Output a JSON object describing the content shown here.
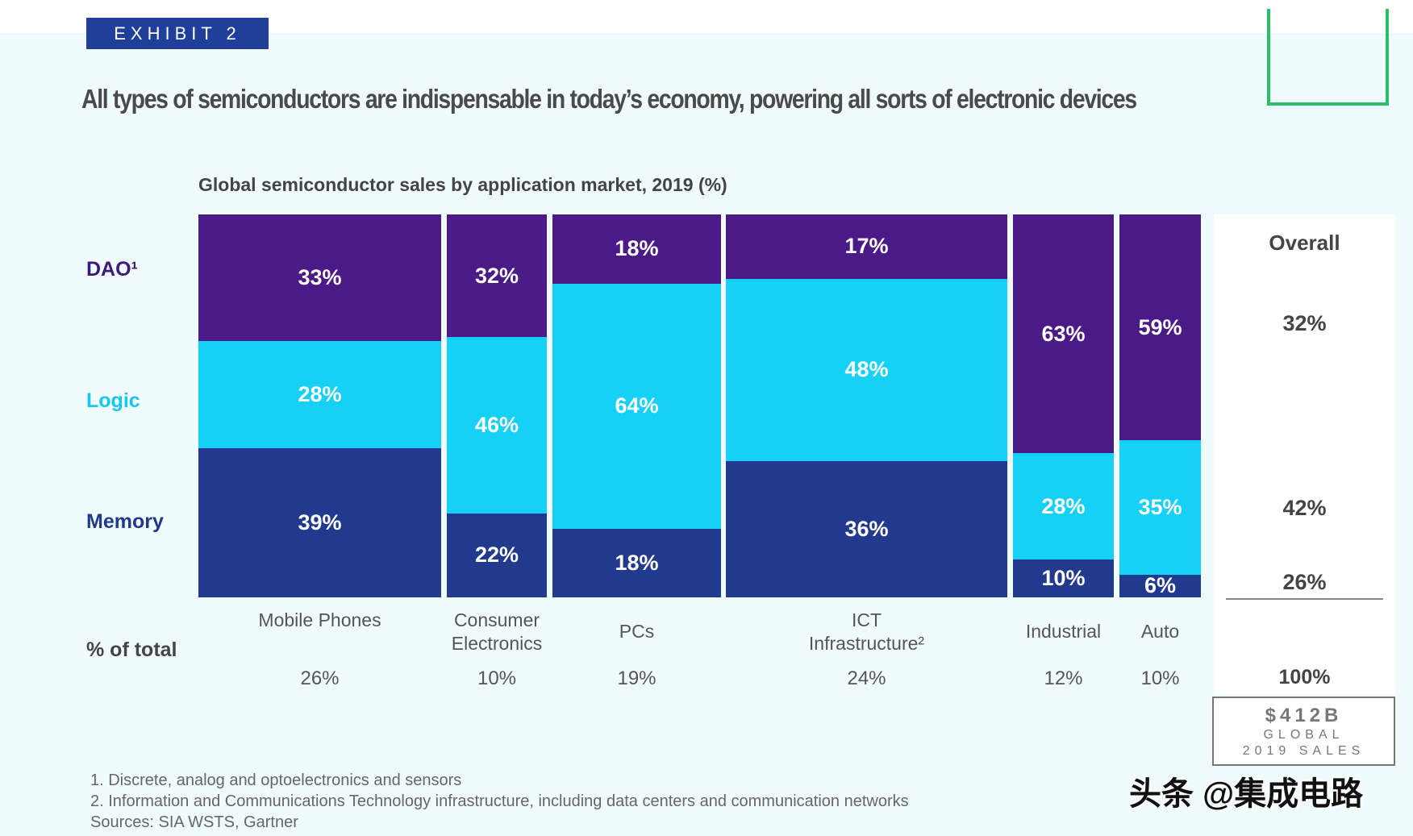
{
  "exhibit_label": "EXHIBIT 2",
  "headline": "All types of semiconductors are indispensable in today’s economy, powering all sorts of electronic devices",
  "colors": {
    "dao": "#4a1a86",
    "logic": "#17d0f5",
    "memory": "#223a8e",
    "accent_green": "#2bbf6a",
    "exhibit_bg": "#1f3f9a"
  },
  "chart_data": {
    "type": "bar",
    "subtype": "marimekko-stacked-100",
    "title": "Global semiconductor sales by application market, 2019 (%)",
    "categories": [
      "Mobile Phones",
      "Consumer Electronics",
      "PCs",
      "ICT Infrastructure²",
      "Industrial",
      "Auto"
    ],
    "share_of_total_label": "% of total",
    "share_of_total": [
      "26%",
      "10%",
      "19%",
      "24%",
      "12%",
      "10%"
    ],
    "series": [
      {
        "name": "DAO¹",
        "values": [
          33,
          32,
          18,
          17,
          63,
          59
        ],
        "labels": [
          "33%",
          "32%",
          "18%",
          "17%",
          "63%",
          "59%"
        ]
      },
      {
        "name": "Logic",
        "values": [
          28,
          46,
          64,
          48,
          28,
          35
        ],
        "labels": [
          "28%",
          "46%",
          "64%",
          "48%",
          "28%",
          "35%"
        ]
      },
      {
        "name": "Memory",
        "values": [
          39,
          22,
          18,
          36,
          10,
          6
        ],
        "labels": [
          "39%",
          "22%",
          "18%",
          "36%",
          "10%",
          "6%"
        ]
      }
    ],
    "overall": {
      "header": "Overall",
      "dao": "32%",
      "logic": "42%",
      "memory": "26%",
      "total": "100%"
    }
  },
  "total_box": {
    "value": "$412B",
    "line1": "GLOBAL",
    "line2": "2019 SALES"
  },
  "footnotes": [
    "1. Discrete, analog and optoelectronics and sensors",
    "2. Information and Communications Technology infrastructure, including data centers and communication networks",
    "Sources: SIA WSTS, Gartner"
  ],
  "watermark": "头条 @集成电路"
}
